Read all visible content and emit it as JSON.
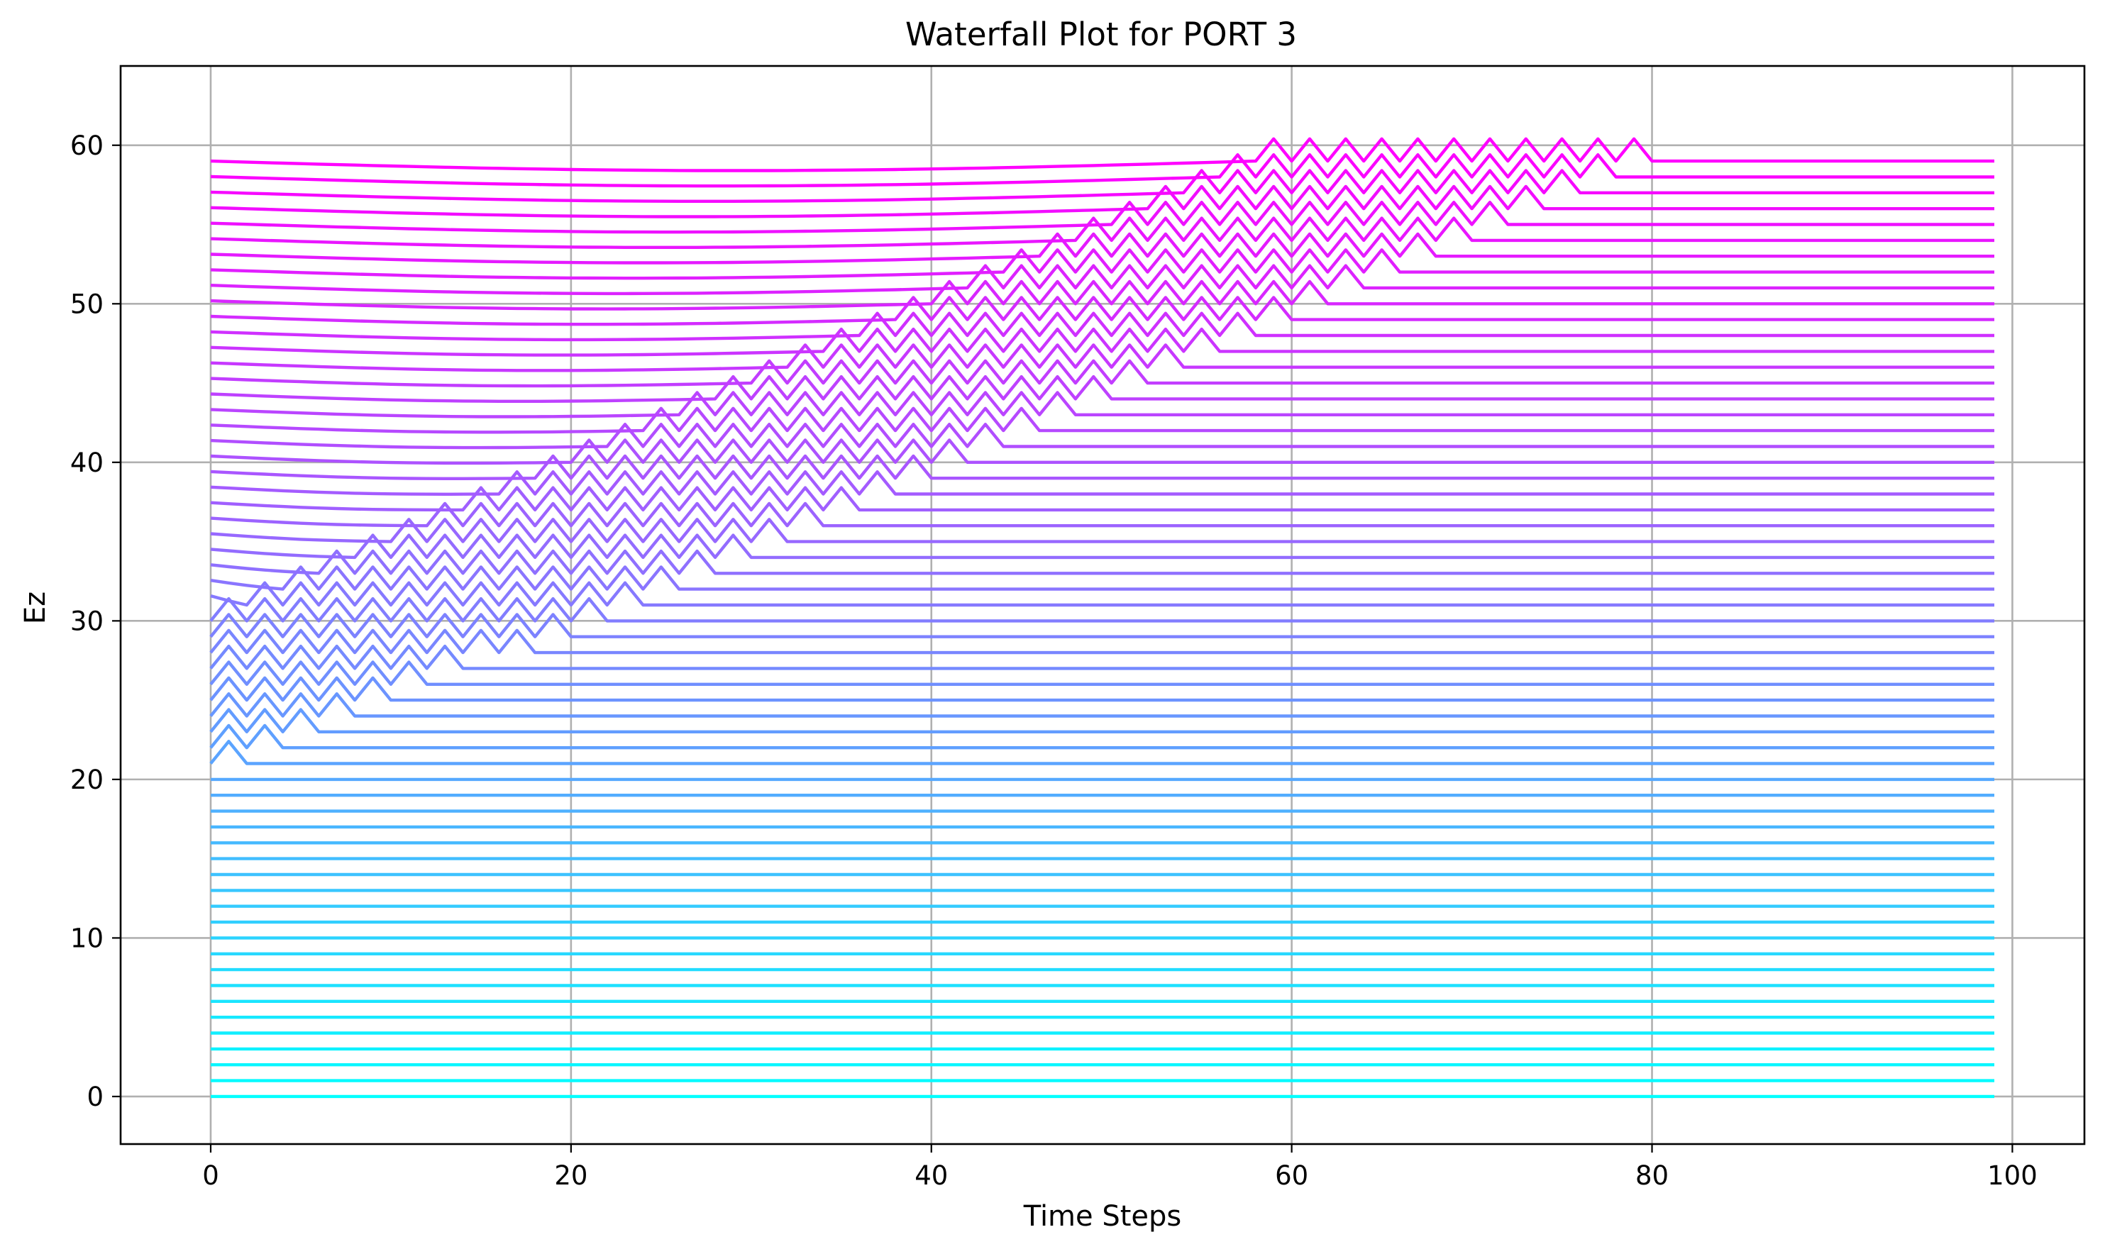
{
  "chart_data": {
    "type": "line",
    "title": "Waterfall Plot for PORT 3",
    "xlabel": "Time Steps",
    "ylabel": "Ez",
    "xlim": [
      -5,
      104
    ],
    "ylim": [
      -3,
      65
    ],
    "xticks": [
      0,
      20,
      40,
      60,
      80,
      100
    ],
    "yticks": [
      0,
      10,
      20,
      30,
      40,
      50,
      60
    ],
    "grid": true,
    "legend": "none",
    "colormap": {
      "start": "#00ffff",
      "end": "#ff00ff",
      "name": "cool"
    },
    "x_range": [
      0,
      99
    ],
    "series_count": 60,
    "series_offset_step": 1,
    "series_offsets": [
      0,
      1,
      2,
      3,
      4,
      5,
      6,
      7,
      8,
      9,
      10,
      11,
      12,
      13,
      14,
      15,
      16,
      17,
      18,
      19,
      20,
      21,
      22,
      23,
      24,
      25,
      26,
      27,
      28,
      29,
      30,
      31,
      32,
      33,
      34,
      35,
      36,
      37,
      38,
      39,
      40,
      41,
      42,
      43,
      44,
      45,
      46,
      47,
      48,
      49,
      50,
      51,
      52,
      53,
      54,
      55,
      56,
      57,
      58,
      59
    ],
    "series_pulse_end_step": [
      0,
      0,
      0,
      0,
      0,
      0,
      0,
      0,
      0,
      0,
      0,
      0,
      0,
      0,
      0,
      0,
      0,
      0,
      0,
      0,
      0,
      2,
      4,
      6,
      8,
      10,
      12,
      14,
      18,
      20,
      22,
      24,
      26,
      28,
      30,
      32,
      34,
      36,
      38,
      40,
      42,
      44,
      46,
      48,
      50,
      52,
      54,
      56,
      58,
      60,
      62,
      64,
      66,
      68,
      70,
      72,
      74,
      76,
      78,
      80
    ],
    "description_values": {
      "flat_rows_baseline": "series 0-19 constant at offset",
      "oscillation_amplitude": 1.4,
      "oscillation_period_steps": 2,
      "smooth_bump_center_step": 49,
      "smooth_bump_amplitude_top": -2
    }
  }
}
